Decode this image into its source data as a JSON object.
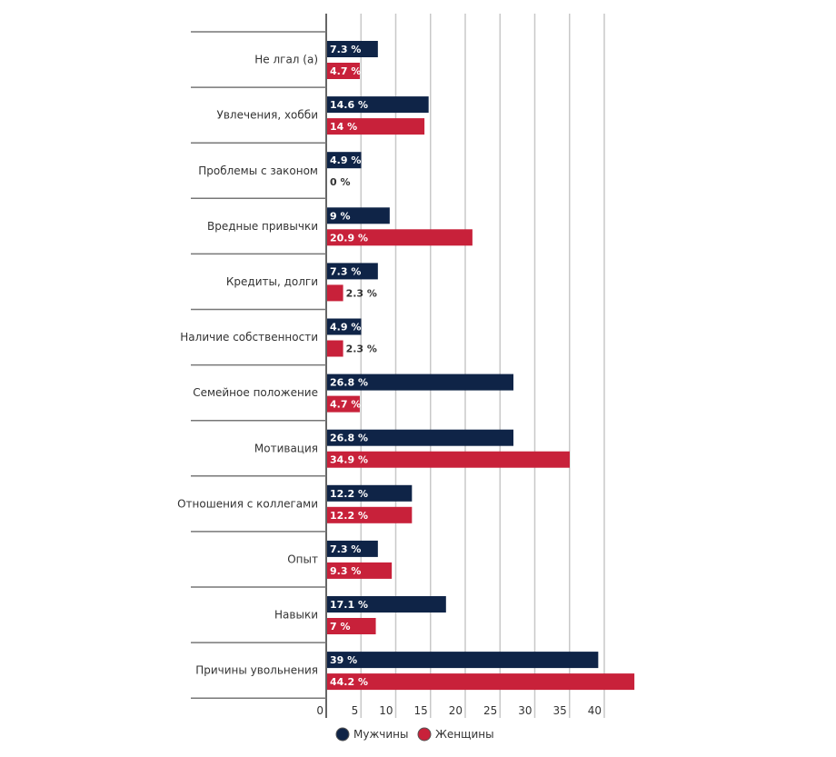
{
  "chart_data": {
    "type": "bar",
    "orientation": "horizontal",
    "categories": [
      "Не лгал (а)",
      "Увлечения, хобби",
      "Проблемы с законом",
      "Вредные привычки",
      "Кредиты, долги",
      "Наличие собственности",
      "Семейное положение",
      "Мотивация",
      "Отношения с коллегами",
      "Опыт",
      "Навыки",
      "Причины увольнения"
    ],
    "series": [
      {
        "name": "Мужчины",
        "color": "#0f2447",
        "values": [
          7.3,
          14.6,
          4.9,
          9,
          7.3,
          4.9,
          26.8,
          26.8,
          12.2,
          7.3,
          17.1,
          39
        ]
      },
      {
        "name": "Женщины",
        "color": "#c8213a",
        "values": [
          4.7,
          14,
          0,
          20.9,
          2.3,
          2.3,
          4.7,
          34.9,
          12.2,
          9.3,
          7,
          44.2
        ]
      }
    ],
    "value_suffix": " %",
    "xticks": [
      0,
      5,
      10,
      15,
      20,
      25,
      30,
      35,
      40
    ],
    "xlim": [
      0,
      45
    ],
    "grid": true,
    "legend": "bottom"
  }
}
